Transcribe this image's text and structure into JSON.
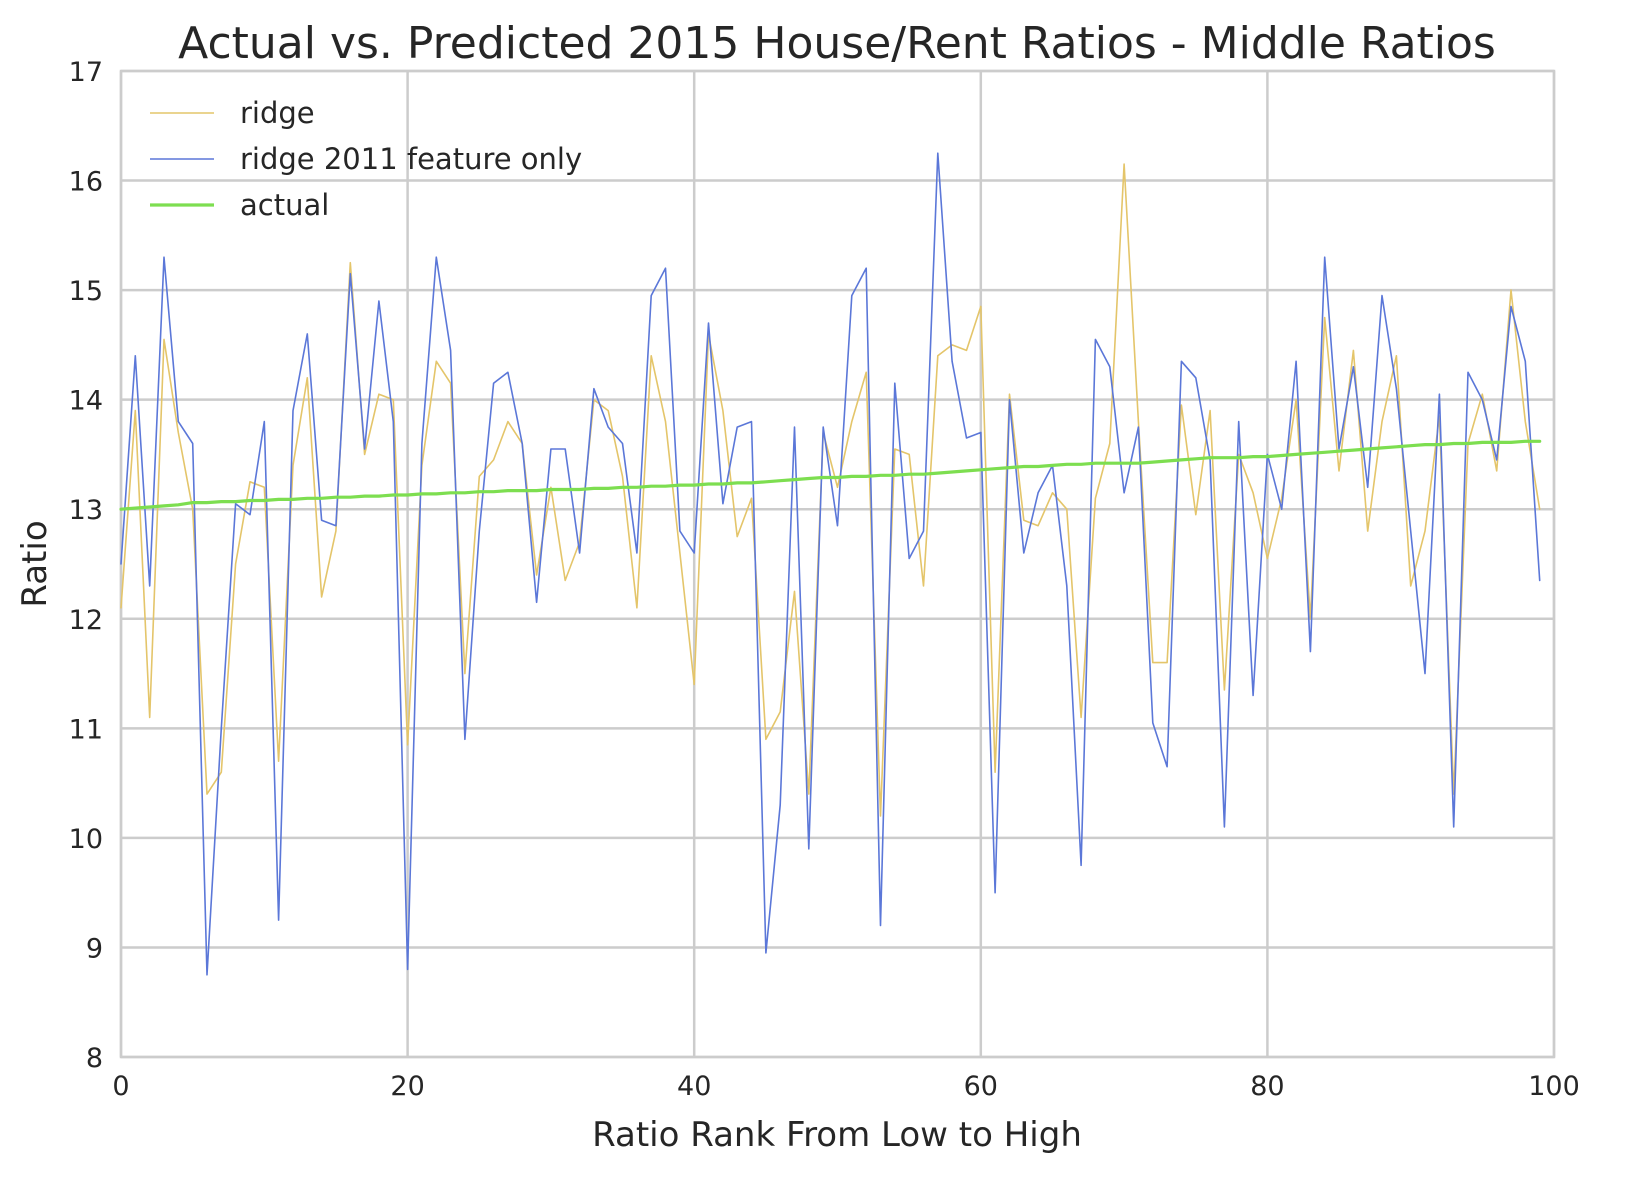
{
  "chart_data": {
    "type": "line",
    "title": "Actual vs. Predicted 2015 House/Rent Ratios - Middle Ratios",
    "xlabel": "Ratio Rank From Low to High",
    "ylabel": "Ratio",
    "xlim": [
      0,
      100
    ],
    "ylim": [
      8,
      17
    ],
    "xticks": [
      0,
      20,
      40,
      60,
      80,
      100
    ],
    "yticks": [
      8,
      9,
      10,
      11,
      12,
      13,
      14,
      15,
      16,
      17
    ],
    "grid": true,
    "legend_position": "upper-left",
    "x": [
      0,
      1,
      2,
      3,
      4,
      5,
      6,
      7,
      8,
      9,
      10,
      11,
      12,
      13,
      14,
      15,
      16,
      17,
      18,
      19,
      20,
      21,
      22,
      23,
      24,
      25,
      26,
      27,
      28,
      29,
      30,
      31,
      32,
      33,
      34,
      35,
      36,
      37,
      38,
      39,
      40,
      41,
      42,
      43,
      44,
      45,
      46,
      47,
      48,
      49,
      50,
      51,
      52,
      53,
      54,
      55,
      56,
      57,
      58,
      59,
      60,
      61,
      62,
      63,
      64,
      65,
      66,
      67,
      68,
      69,
      70,
      71,
      72,
      73,
      74,
      75,
      76,
      77,
      78,
      79,
      80,
      81,
      82,
      83,
      84,
      85,
      86,
      87,
      88,
      89,
      90,
      91,
      92,
      93,
      94,
      95,
      96,
      97,
      98,
      99
    ],
    "series": [
      {
        "name": "ridge",
        "color": "#e4c56a",
        "width": 1.6,
        "values": [
          12.1,
          13.9,
          11.1,
          14.55,
          13.7,
          13.0,
          10.4,
          10.6,
          12.5,
          13.25,
          13.2,
          10.7,
          13.4,
          14.2,
          12.2,
          12.8,
          15.25,
          13.5,
          14.05,
          14.0,
          10.85,
          13.4,
          14.35,
          14.15,
          11.5,
          13.3,
          13.45,
          13.8,
          13.6,
          12.4,
          13.2,
          12.35,
          12.7,
          14.0,
          13.9,
          13.3,
          12.1,
          14.4,
          13.8,
          12.6,
          11.4,
          14.6,
          13.9,
          12.75,
          13.1,
          10.9,
          11.15,
          12.25,
          10.4,
          13.7,
          13.2,
          13.8,
          14.25,
          10.2,
          13.55,
          13.5,
          12.3,
          14.4,
          14.5,
          14.45,
          14.85,
          10.6,
          14.05,
          12.9,
          12.85,
          13.15,
          13.0,
          11.1,
          13.1,
          13.6,
          16.15,
          13.8,
          11.6,
          11.6,
          13.95,
          12.95,
          13.9,
          11.35,
          13.5,
          13.15,
          12.55,
          13.1,
          14.0,
          12.0,
          14.75,
          13.35,
          14.45,
          12.8,
          13.8,
          14.4,
          12.3,
          12.8,
          13.85,
          10.4,
          13.6,
          14.05,
          13.35,
          15.0,
          13.8,
          13.0
        ]
      },
      {
        "name": "ridge 2011 feature only",
        "color": "#5b77d8",
        "width": 1.6,
        "values": [
          12.5,
          14.4,
          12.3,
          15.3,
          13.8,
          13.6,
          8.75,
          11.0,
          13.05,
          12.95,
          13.8,
          9.25,
          13.9,
          14.6,
          12.9,
          12.85,
          15.15,
          13.55,
          14.9,
          13.8,
          8.8,
          13.6,
          15.3,
          14.45,
          10.9,
          12.8,
          14.15,
          14.25,
          13.6,
          12.15,
          13.55,
          13.55,
          12.6,
          14.1,
          13.75,
          13.6,
          12.6,
          14.95,
          15.2,
          12.8,
          12.6,
          14.7,
          13.05,
          13.75,
          13.8,
          8.95,
          10.3,
          13.75,
          9.9,
          13.75,
          12.85,
          14.95,
          15.2,
          9.2,
          14.15,
          12.55,
          12.8,
          16.25,
          14.35,
          13.65,
          13.7,
          9.5,
          14.0,
          12.6,
          13.15,
          13.4,
          12.3,
          9.75,
          14.55,
          14.3,
          13.15,
          13.75,
          11.05,
          10.65,
          14.35,
          14.2,
          13.45,
          10.1,
          13.8,
          11.3,
          13.5,
          13.0,
          14.35,
          11.7,
          15.3,
          13.55,
          14.3,
          13.2,
          14.95,
          14.1,
          12.8,
          11.5,
          14.05,
          10.1,
          14.25,
          14.0,
          13.45,
          14.85,
          14.35,
          12.35
        ]
      },
      {
        "name": "actual",
        "color": "#7dde50",
        "width": 3.2,
        "values": [
          13.0,
          13.01,
          13.02,
          13.03,
          13.04,
          13.06,
          13.06,
          13.07,
          13.07,
          13.08,
          13.08,
          13.09,
          13.09,
          13.1,
          13.1,
          13.11,
          13.11,
          13.12,
          13.12,
          13.13,
          13.13,
          13.14,
          13.14,
          13.15,
          13.15,
          13.16,
          13.16,
          13.17,
          13.17,
          13.17,
          13.18,
          13.18,
          13.18,
          13.19,
          13.19,
          13.2,
          13.2,
          13.21,
          13.21,
          13.22,
          13.22,
          13.23,
          13.23,
          13.24,
          13.24,
          13.25,
          13.26,
          13.27,
          13.28,
          13.29,
          13.29,
          13.3,
          13.3,
          13.31,
          13.31,
          13.32,
          13.32,
          13.33,
          13.34,
          13.35,
          13.36,
          13.37,
          13.38,
          13.39,
          13.39,
          13.4,
          13.41,
          13.41,
          13.42,
          13.42,
          13.42,
          13.42,
          13.43,
          13.44,
          13.45,
          13.46,
          13.47,
          13.47,
          13.47,
          13.48,
          13.48,
          13.49,
          13.5,
          13.51,
          13.52,
          13.53,
          13.54,
          13.55,
          13.56,
          13.57,
          13.58,
          13.59,
          13.59,
          13.6,
          13.6,
          13.61,
          13.61,
          13.61,
          13.62,
          13.62
        ]
      }
    ]
  }
}
